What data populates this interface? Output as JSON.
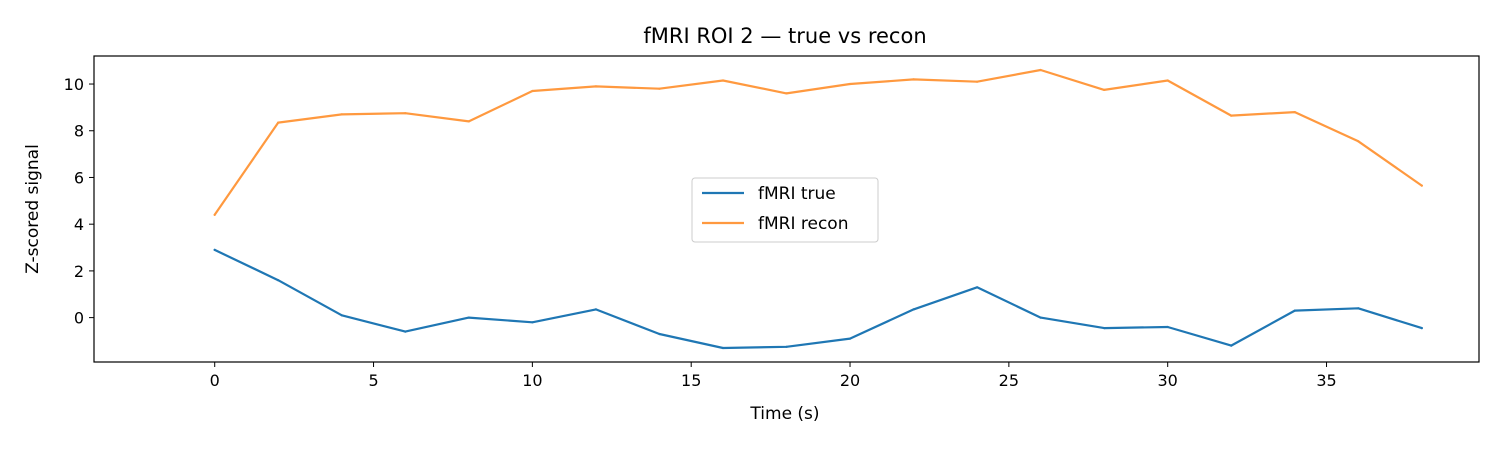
{
  "chart_data": {
    "type": "line",
    "title": "fMRI ROI 2 — true vs recon",
    "xlabel": "Time (s)",
    "ylabel": "Z-scored signal",
    "xlim": [
      -3.8,
      39.8
    ],
    "ylim": [
      -1.9,
      11.2
    ],
    "xticks": [
      0,
      5,
      10,
      15,
      20,
      25,
      30,
      35
    ],
    "yticks": [
      0,
      2,
      4,
      6,
      8,
      10
    ],
    "x": [
      0,
      2,
      4,
      6,
      8,
      10,
      12,
      14,
      16,
      18,
      20,
      22,
      24,
      26,
      28,
      30,
      32,
      34,
      36,
      38
    ],
    "series": [
      {
        "name": "fMRI true",
        "color": "#1f77b4",
        "values": [
          2.9,
          1.6,
          0.1,
          -0.6,
          0.0,
          -0.2,
          0.35,
          -0.7,
          -1.3,
          -1.25,
          -0.9,
          0.35,
          1.3,
          0.0,
          -0.45,
          -0.4,
          -1.2,
          0.3,
          0.4,
          -0.45
        ]
      },
      {
        "name": "fMRI recon",
        "color": "#ff993f",
        "values": [
          4.4,
          8.35,
          8.7,
          8.75,
          8.4,
          9.7,
          9.9,
          9.8,
          10.15,
          9.6,
          10.0,
          10.2,
          10.1,
          10.6,
          9.75,
          10.15,
          8.65,
          8.8,
          7.55,
          5.65
        ]
      }
    ],
    "legend": "center",
    "grid": false
  }
}
